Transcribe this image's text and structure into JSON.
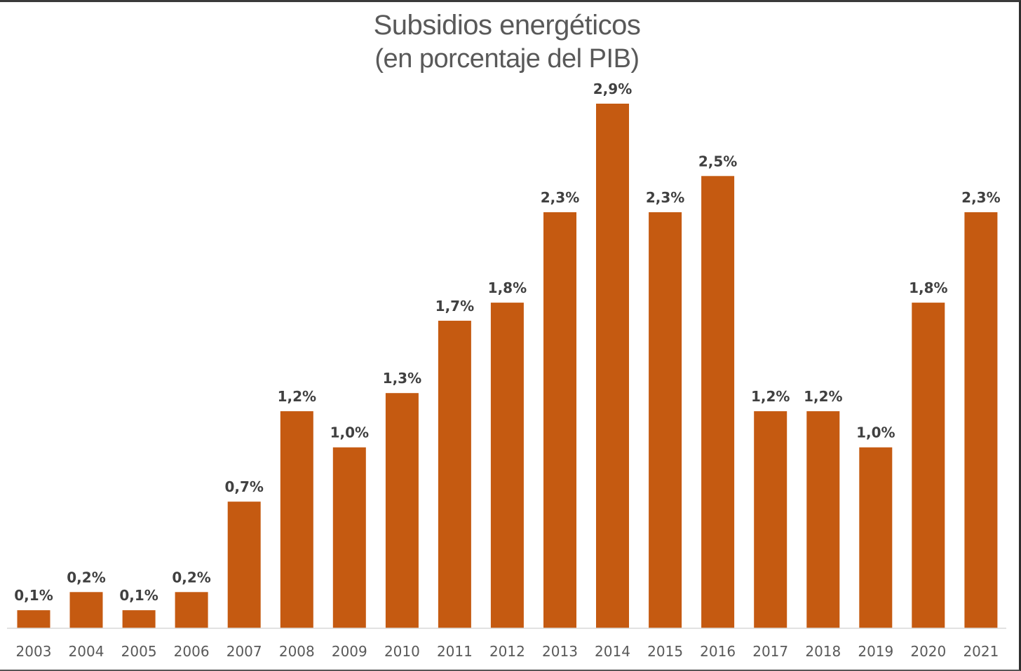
{
  "chart_data": {
    "type": "bar",
    "title": "Subsidios energéticos",
    "subtitle": "(en porcentaje del PIB)",
    "xlabel": "",
    "ylabel": "",
    "ylim": [
      0,
      3.0
    ],
    "grid": false,
    "bar_color": "#C55A11",
    "categories": [
      "2003",
      "2004",
      "2005",
      "2006",
      "2007",
      "2008",
      "2009",
      "2010",
      "2011",
      "2012",
      "2013",
      "2014",
      "2015",
      "2016",
      "2017",
      "2018",
      "2019",
      "2020",
      "2021"
    ],
    "values": [
      0.1,
      0.2,
      0.1,
      0.2,
      0.7,
      1.2,
      1.0,
      1.3,
      1.7,
      1.8,
      2.3,
      2.9,
      2.3,
      2.5,
      1.2,
      1.2,
      1.0,
      1.8,
      2.3
    ],
    "data_labels": [
      "0,1%",
      "0,2%",
      "0,1%",
      "0,2%",
      "0,7%",
      "1,2%",
      "1,0%",
      "1,3%",
      "1,7%",
      "1,8%",
      "2,3%",
      "2,9%",
      "2,3%",
      "2,5%",
      "1,2%",
      "1,2%",
      "1,0%",
      "1,8%",
      "2,3%"
    ]
  }
}
